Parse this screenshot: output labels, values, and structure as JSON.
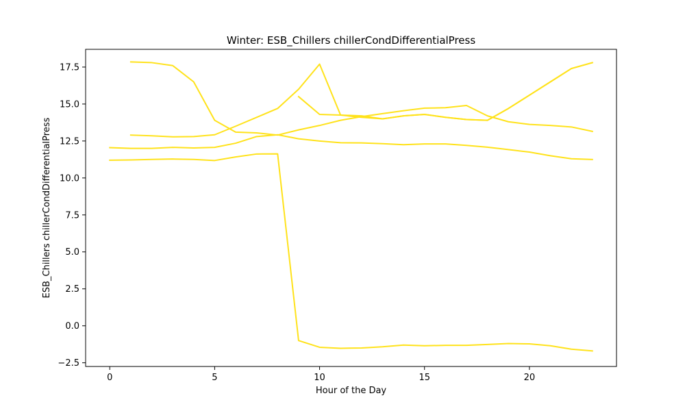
{
  "chart_data": {
    "type": "line",
    "title": "Winter: ESB_Chillers chillerCondDifferentialPress",
    "xlabel": "Hour of the Day",
    "ylabel": "ESB_Chillers chillerCondDifferentialPress",
    "xlim": [
      -1.15,
      24.15
    ],
    "ylim": [
      -2.75,
      18.7
    ],
    "x_ticks": [
      0,
      5,
      10,
      15,
      20
    ],
    "y_ticks": [
      -2.5,
      0.0,
      2.5,
      5.0,
      7.5,
      10.0,
      12.5,
      15.0,
      17.5
    ],
    "x_tick_labels": [
      "0",
      "5",
      "10",
      "15",
      "20"
    ],
    "y_tick_labels": [
      "−2.5",
      "0.0",
      "2.5",
      "5.0",
      "7.5",
      "10.0",
      "12.5",
      "15.0",
      "17.5"
    ],
    "grid": false,
    "line_color": "#ffe21a",
    "series": [
      {
        "x": [
          0,
          1,
          2,
          3,
          4,
          5,
          6,
          7,
          8,
          9,
          10,
          11,
          12,
          13,
          14,
          15,
          16,
          17,
          18,
          19,
          20,
          21,
          22,
          23
        ],
        "values": [
          11.2,
          11.22,
          11.25,
          11.28,
          11.25,
          11.18,
          11.42,
          11.62,
          11.63,
          -1.0,
          -1.45,
          -1.52,
          -1.5,
          -1.42,
          -1.3,
          -1.35,
          -1.32,
          -1.32,
          -1.26,
          -1.2,
          -1.22,
          -1.35,
          -1.58,
          -1.7
        ]
      },
      {
        "x": [
          0,
          1,
          2,
          3,
          4,
          5,
          6,
          7,
          8,
          9,
          10,
          11,
          12,
          13,
          14,
          15,
          16,
          17,
          18,
          19,
          20,
          21,
          22,
          23
        ],
        "values": [
          12.05,
          12.0,
          12.0,
          12.07,
          12.03,
          12.07,
          12.35,
          12.8,
          12.92,
          12.65,
          12.5,
          12.38,
          12.37,
          12.32,
          12.25,
          12.3,
          12.3,
          12.2,
          12.08,
          11.92,
          11.75,
          11.5,
          11.3,
          11.25
        ]
      },
      {
        "x": [
          1,
          2,
          3,
          4,
          5,
          6,
          7,
          8,
          9,
          10,
          11,
          12,
          13,
          14,
          15,
          16,
          17,
          18,
          19,
          20,
          21,
          22,
          23
        ],
        "values": [
          12.9,
          12.85,
          12.78,
          12.8,
          12.92,
          13.5,
          14.1,
          14.7,
          16.0,
          17.7,
          14.25,
          14.2,
          14.0,
          14.2,
          14.3,
          14.1,
          13.95,
          13.9,
          14.7,
          15.6,
          16.5,
          17.4,
          17.8
        ]
      },
      {
        "x": [
          1,
          2,
          3,
          4,
          5,
          6,
          7,
          8,
          9,
          10,
          11,
          12,
          13,
          14,
          15,
          16,
          17,
          18,
          19,
          20,
          21,
          22,
          23
        ],
        "values": [
          17.85,
          17.8,
          17.6,
          16.5,
          13.9,
          13.1,
          13.05,
          12.9,
          13.25,
          13.55,
          13.9,
          14.15,
          14.35,
          14.55,
          14.72,
          14.75,
          14.9,
          14.2,
          13.8,
          13.62,
          13.55,
          13.45,
          13.15
        ]
      },
      {
        "x": [
          9,
          10,
          11,
          12,
          13,
          14,
          15,
          16,
          17,
          18,
          19,
          20,
          21,
          22,
          23
        ],
        "values": [
          15.5,
          14.3,
          14.25,
          14.1,
          14.0,
          14.2,
          14.3,
          14.1,
          13.95,
          13.9,
          14.7,
          15.6,
          16.5,
          17.4,
          17.8
        ]
      }
    ]
  }
}
